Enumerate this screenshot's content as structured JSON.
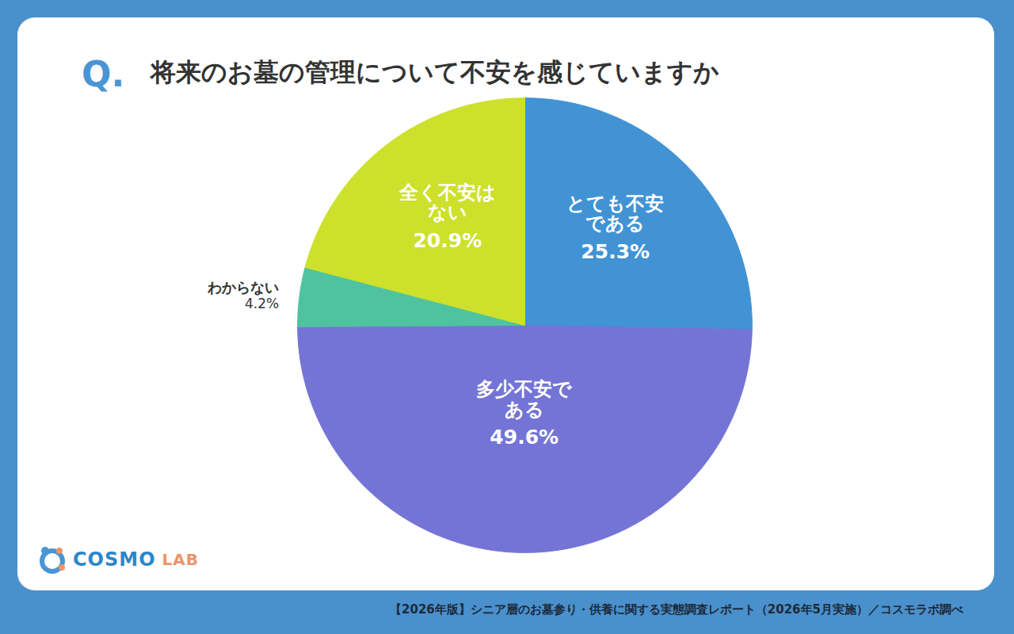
{
  "chart_data": {
    "type": "pie",
    "question_label": "Q.",
    "title": "将来のお墓の管理について不安を感じていますか",
    "categories": [
      "とても不安である",
      "多少不安である",
      "わからない",
      "全く不安はない"
    ],
    "values": [
      25.3,
      49.6,
      4.2,
      20.9
    ],
    "value_labels": [
      "25.3%",
      "49.6%",
      "4.2%",
      "20.9%"
    ],
    "colors": [
      "#4193d4",
      "#7474d6",
      "#4fc39f",
      "#cde02b"
    ],
    "data_labels": true,
    "tick_labels": false,
    "logo": "COSMO LAB",
    "source": "【2026年版】シニア層のお墓参り・供養に関する実態調査レポート（2026年5月実施）／コスモラボ調べ"
  }
}
